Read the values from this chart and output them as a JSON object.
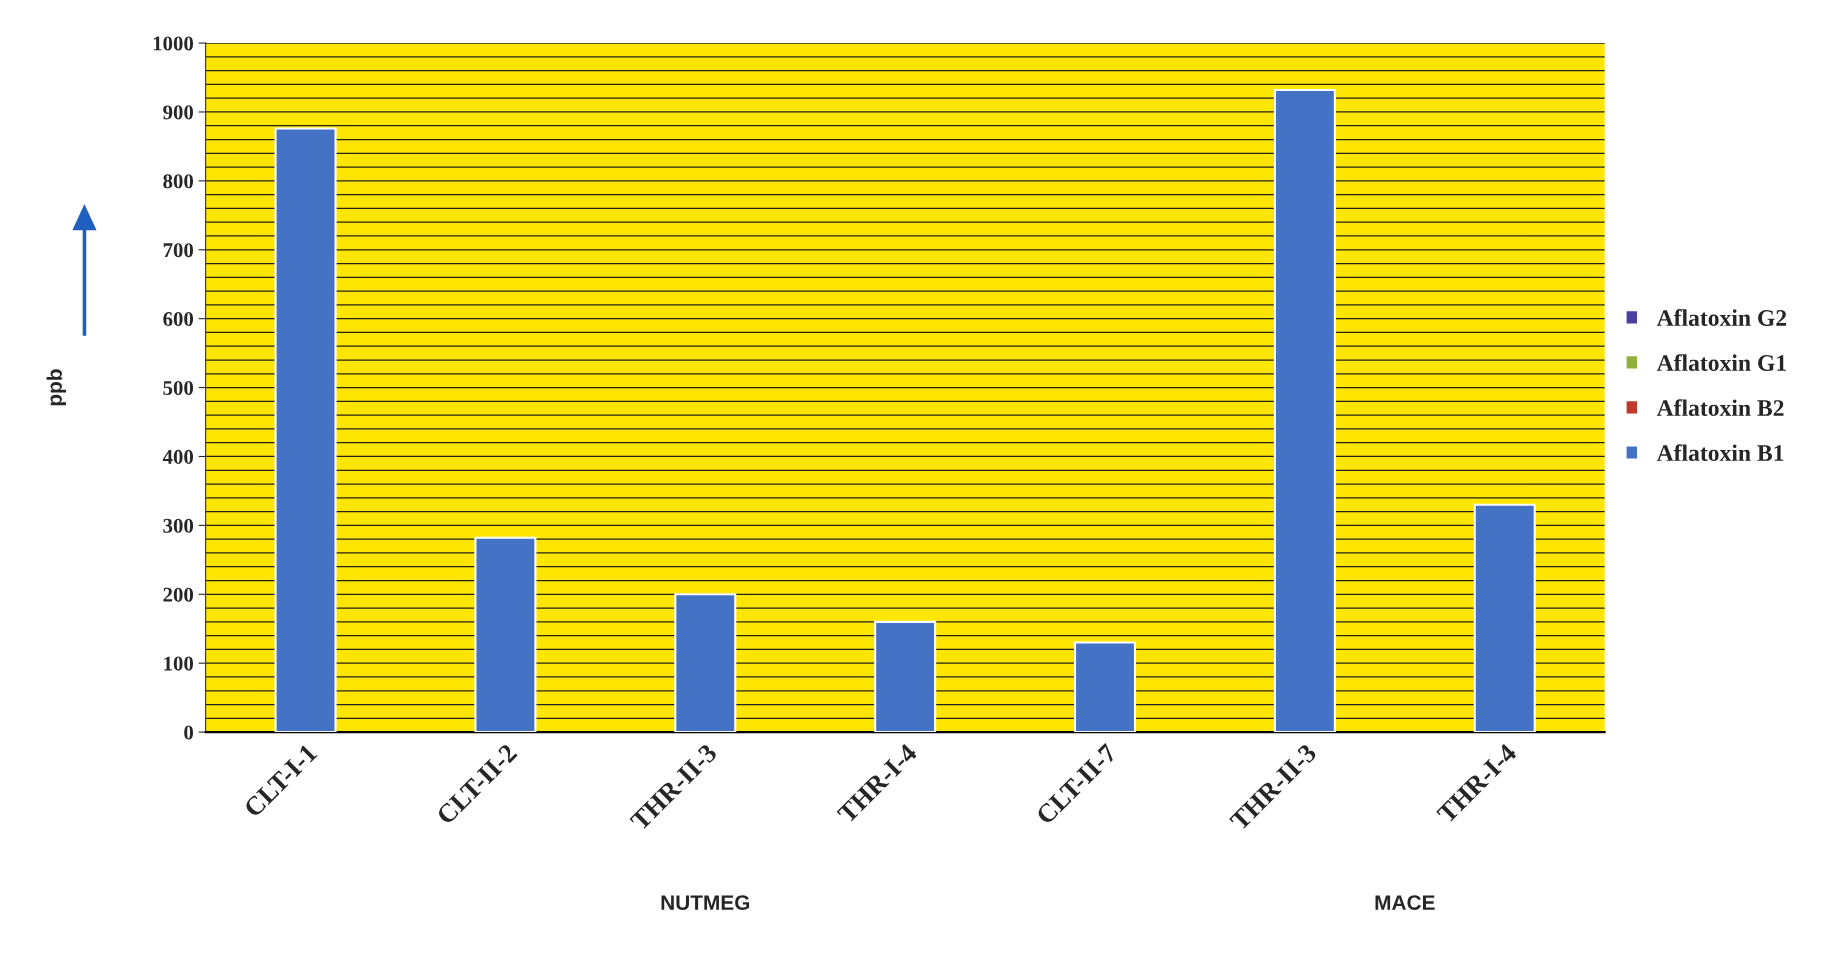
{
  "chart_data": {
    "type": "bar",
    "stacked": true,
    "categories": [
      "CLT-I-1",
      "CLT-II-2",
      "THR-II-3",
      "THR-I-4",
      "CLT-II-7",
      "THR-II-3",
      "THR-I-4"
    ],
    "series": [
      {
        "name": "Aflatoxin B1",
        "color": "#4472c4",
        "values": [
          876,
          282,
          200,
          160,
          130,
          932,
          330
        ]
      },
      {
        "name": "Aflatoxin B2",
        "color": "#c0392b",
        "values": [
          0,
          0,
          0,
          0,
          0,
          0,
          0
        ]
      },
      {
        "name": "Aflatoxin G1",
        "color": "#8fb03a",
        "values": [
          0,
          0,
          0,
          0,
          0,
          0,
          0
        ]
      },
      {
        "name": "Aflatoxin G2",
        "color": "#4a3f9f",
        "values": [
          0,
          0,
          0,
          0,
          0,
          0,
          0
        ]
      }
    ],
    "ylabel": "ppb",
    "ylim": [
      0,
      1000
    ],
    "yticks": [
      0,
      100,
      200,
      300,
      400,
      500,
      600,
      700,
      800,
      900,
      1000
    ],
    "grid": "y",
    "legend": "right",
    "annotations": [
      "NUTMEG",
      "MACE"
    ]
  }
}
